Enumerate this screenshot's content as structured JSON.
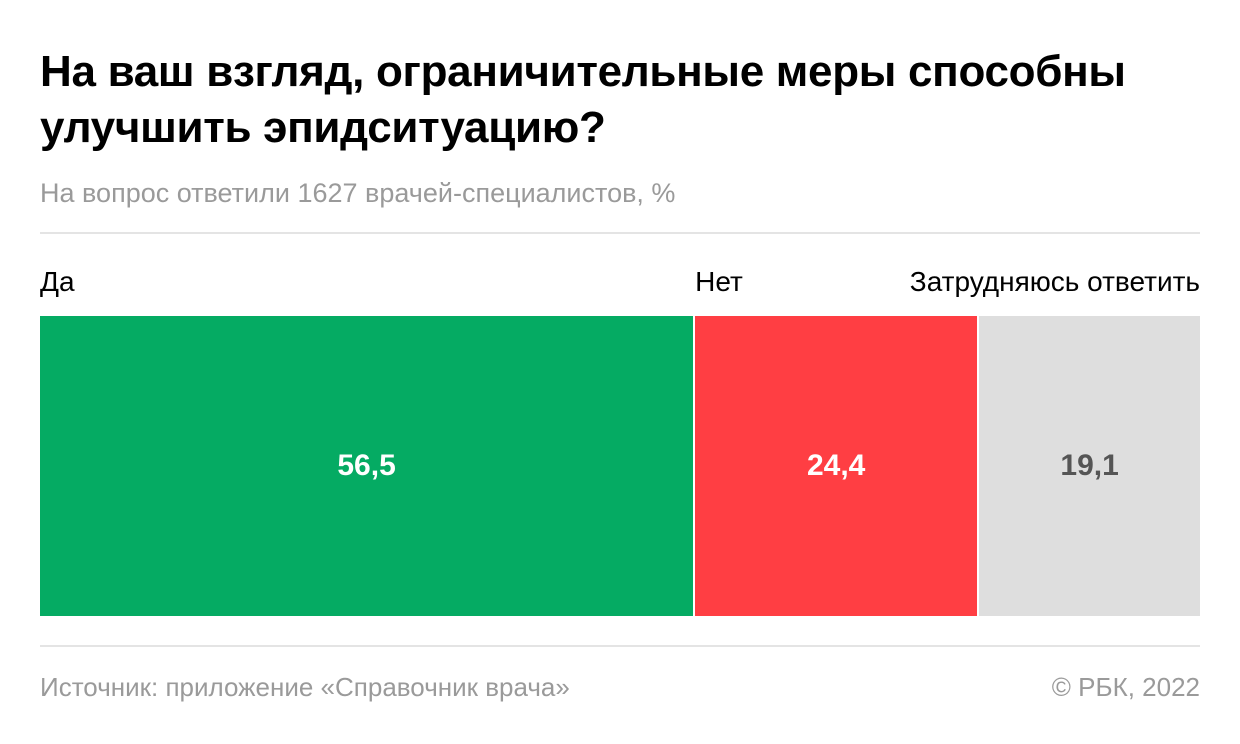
{
  "header": {
    "title": "На ваш взгляд, ограничительные меры способны улучшить эпидситуацию?",
    "subtitle": "На вопрос ответили 1627 врачей-специалистов, %"
  },
  "footer": {
    "source": "Источник: приложение «Справочник врача»",
    "copyright": "© РБК, 2022"
  },
  "chart_data": {
    "type": "bar",
    "orientation": "horizontal-stacked",
    "title": "На ваш взгляд, ограничительные меры способны улучшить эпидситуацию?",
    "subtitle": "На вопрос ответили 1627 врачей-специалистов, %",
    "categories": [
      "Да",
      "Нет",
      "Затрудняюсь ответить"
    ],
    "values": [
      56.5,
      24.4,
      19.1
    ],
    "value_labels": [
      "56,5",
      "24,4",
      "19,1"
    ],
    "colors": [
      "#05ab63",
      "#ff3e43",
      "#dedede"
    ],
    "label_colors": [
      "#ffffff",
      "#ffffff",
      "#555555"
    ],
    "total": 100,
    "grid": false
  }
}
